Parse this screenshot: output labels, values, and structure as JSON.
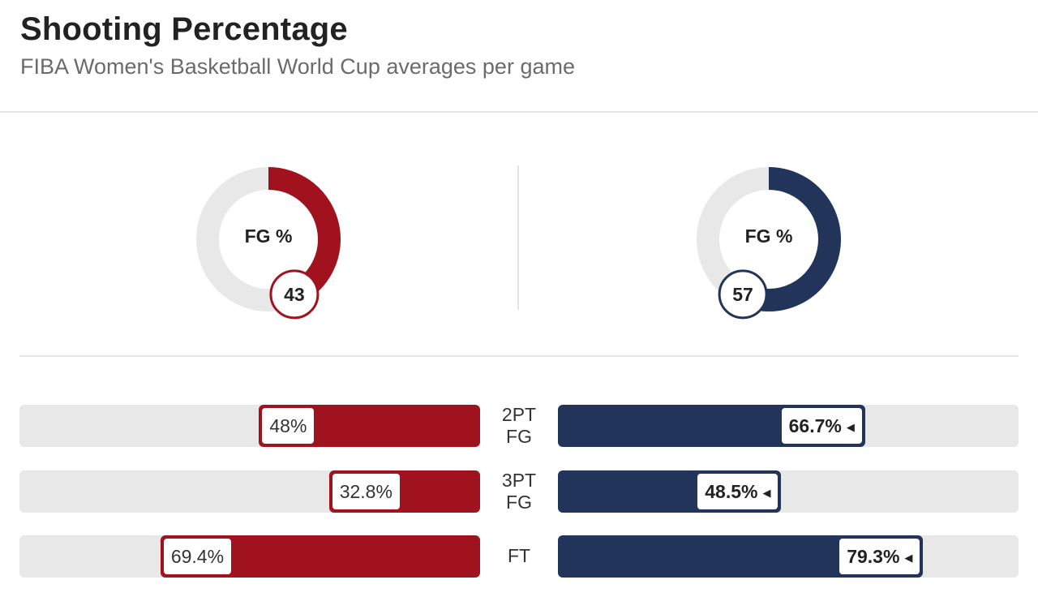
{
  "header": {
    "title": "Shooting Percentage",
    "subtitle": "FIBA Women's Basketball World Cup averages per game"
  },
  "colors": {
    "left_team": "#a0121e",
    "right_team": "#22345a",
    "track": "#e8e8e8"
  },
  "chart_data": [
    {
      "type": "pie",
      "label": "FG %",
      "value": 43,
      "color": "#a0121e"
    },
    {
      "type": "pie",
      "label": "FG %",
      "value": 57,
      "color": "#22345a"
    },
    {
      "type": "bar",
      "categories": [
        "2PT FG",
        "3PT FG",
        "FT"
      ],
      "series": [
        {
          "values": [
            48,
            32.8,
            69.4
          ],
          "labels": [
            "48%",
            "32.8%",
            "69.4%"
          ],
          "color": "#a0121e"
        },
        {
          "values": [
            66.7,
            48.5,
            79.3
          ],
          "labels": [
            "66.7%",
            "48.5%",
            "79.3%"
          ],
          "color": "#22345a"
        }
      ],
      "ylim": [
        0,
        100
      ]
    }
  ]
}
